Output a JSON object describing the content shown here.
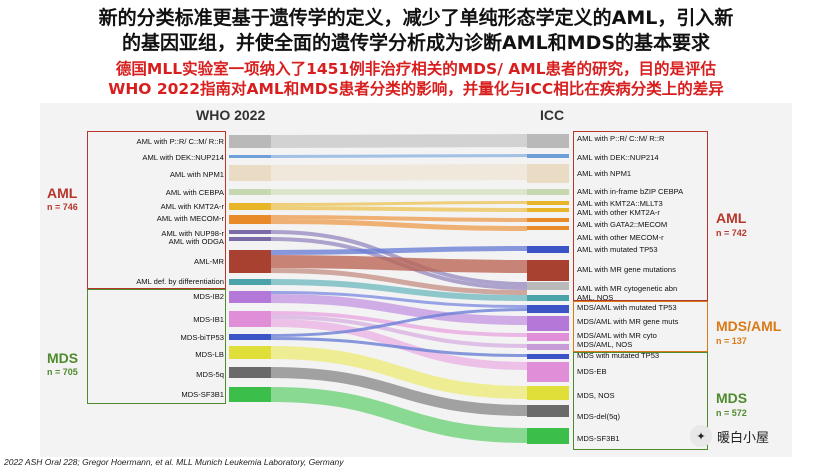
{
  "header": {
    "title_line1": "新的分类标准更基于遗传学的定义，减少了单纯形态学定义的AML，引入新",
    "title_line2": "的基因亚组，并使全面的遗传学分析成为诊断AML和MDS的基本要求",
    "subtitle_line1": "德国MLL实验室一项纳入了1451例非治疗相关的MDS/ AML患者的研究，目的是评估",
    "subtitle_line2": "WHO 2022指南对AML和MDS患者分类的影响，并量化与ICC相比在疾病分类上的差异"
  },
  "columns": {
    "left": "WHO 2022",
    "right": "ICC"
  },
  "groups": {
    "who_aml": {
      "name": "AML",
      "n": "n = 746",
      "color": "#b5362b"
    },
    "who_mds": {
      "name": "MDS",
      "n": "n = 705",
      "color": "#4f8a2f"
    },
    "icc_aml": {
      "name": "AML",
      "n": "n = 742",
      "color": "#b5362b"
    },
    "icc_mdsaml": {
      "name": "MDS/AML",
      "n": "n = 137",
      "color": "#d97a16"
    },
    "icc_mds": {
      "name": "MDS",
      "n": "n = 572",
      "color": "#4f8a2f"
    }
  },
  "left_nodes": [
    {
      "label": "AML with P::R/ C::M/ R::R",
      "color": "#b9b9b9"
    },
    {
      "label": "AML with DEK::NUP214",
      "color": "#6f9fd8"
    },
    {
      "label": "AML with NPM1",
      "color": "#eadcc4"
    },
    {
      "label": "AML with CEBPA",
      "color": "#c7d8b0"
    },
    {
      "label": "AML with KMT2A-r",
      "color": "#e8b428"
    },
    {
      "label": "AML with MECOM-r",
      "color": "#e88a28"
    },
    {
      "label": "AML with NUP98-r",
      "color": "#7a6aa8"
    },
    {
      "label": "AML with ODGA",
      "color": "#7a6aa8"
    },
    {
      "label": "AML-MR",
      "color": "#a8412f"
    },
    {
      "label": "AML def. by differentiation",
      "color": "#4aa3a8"
    },
    {
      "label": "MDS-IB2",
      "color": "#b478d8"
    },
    {
      "label": "MDS-IB1",
      "color": "#e08ed8"
    },
    {
      "label": "MDS-biTP53",
      "color": "#3b55c7"
    },
    {
      "label": "MDS-LB",
      "color": "#e0de38"
    },
    {
      "label": "MDS-5q",
      "color": "#6a6a6a"
    },
    {
      "label": "MDS-SF3B1",
      "color": "#3bbf4a"
    }
  ],
  "right_nodes": [
    {
      "label": "AML with P::R/ C::M/ R::R",
      "color": "#b9b9b9"
    },
    {
      "label": "AML with DEK::NUP214",
      "color": "#6f9fd8"
    },
    {
      "label": "AML with NPM1",
      "color": "#eadcc4"
    },
    {
      "label": "AML with in-frame bZIP CEBPA",
      "color": "#c7d8b0"
    },
    {
      "label": "AML with KMT2A::MLLT3",
      "color": "#e8b428"
    },
    {
      "label": "AML with other KMT2A-r",
      "color": "#e8b428"
    },
    {
      "label": "AML with GATA2::MECOM",
      "color": "#e88a28"
    },
    {
      "label": "AML with other MECOM-r",
      "color": "#e88a28"
    },
    {
      "label": "AML with mutated TP53",
      "color": "#3b55c7"
    },
    {
      "label": "AML with MR gene mutations",
      "color": "#a8412f"
    },
    {
      "label": "AML with MR cytogenetic abn",
      "color": "#b9b9b9"
    },
    {
      "label": "AML, NOS",
      "color": "#4aa3a8"
    },
    {
      "label": "MDS/AML with mutated TP53",
      "color": "#3b55c7"
    },
    {
      "label": "MDS/AML with MR gene muts",
      "color": "#b478d8"
    },
    {
      "label": "MDS/AML with MR cyto",
      "color": "#e08ed8"
    },
    {
      "label": "MDS/AML, NOS",
      "color": "#c79ad8"
    },
    {
      "label": "MDS with mutated TP53",
      "color": "#3b55c7"
    },
    {
      "label": "MDS-EB",
      "color": "#e08ed8"
    },
    {
      "label": "MDS, NOS",
      "color": "#e0de38"
    },
    {
      "label": "MDS-del(5q)",
      "color": "#6a6a6a"
    },
    {
      "label": "MDS-SF3B1",
      "color": "#3bbf4a"
    }
  ],
  "footer": "2022 ASH Oral 228; Gregor Hoermann, et al. MLL Munich Leukemia Laboratory, Germany",
  "brand": {
    "text": "暖白小屋",
    "icon": "wechat-icon"
  }
}
